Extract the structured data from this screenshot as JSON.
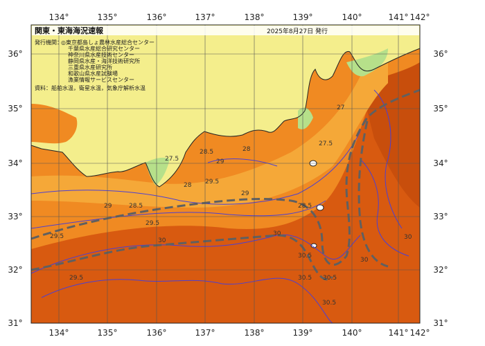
{
  "title": "関東・東海海況速報",
  "date": "2025年8月27日 発行",
  "issuer_label": "発行機関：",
  "issuers": [
    "◎東京都島しょ農林水産総合センター",
    "千葉県水産総合研究センター",
    "神奈川県水産技術センター",
    "静岡県水産・海洋技術研究所",
    "三重県水産研究所",
    "和歌山県水産試験場",
    "漁業情報サービスセンター"
  ],
  "source": "資料：船舶水温，衛星水温，気象庁解析水温",
  "lon_ticks": [
    "134°",
    "135°",
    "136°",
    "137°",
    "138°",
    "139°",
    "140°",
    "141°",
    "142°"
  ],
  "lat_ticks": [
    "36°",
    "35°",
    "34°",
    "33°",
    "32°",
    "31°"
  ],
  "isotherms": [
    "27.5",
    "28",
    "28.5",
    "29",
    "29.5",
    "30",
    "30.5",
    "27",
    "28.5",
    "29",
    "29.5",
    "30",
    "30.5",
    "30.5",
    "29.5",
    "28",
    "27.5",
    "28.5",
    "29",
    "30",
    "29.5",
    "30.5",
    "30"
  ],
  "colors": {
    "land": "#f4ee8c",
    "land_green": "#b6e08a",
    "sea_warm": "#f08a22",
    "sea_hot": "#d85a10",
    "sea_mid": "#f5a838",
    "contour": "#4b3fd4",
    "kuroshio": "#606060",
    "grid": "#555555"
  }
}
